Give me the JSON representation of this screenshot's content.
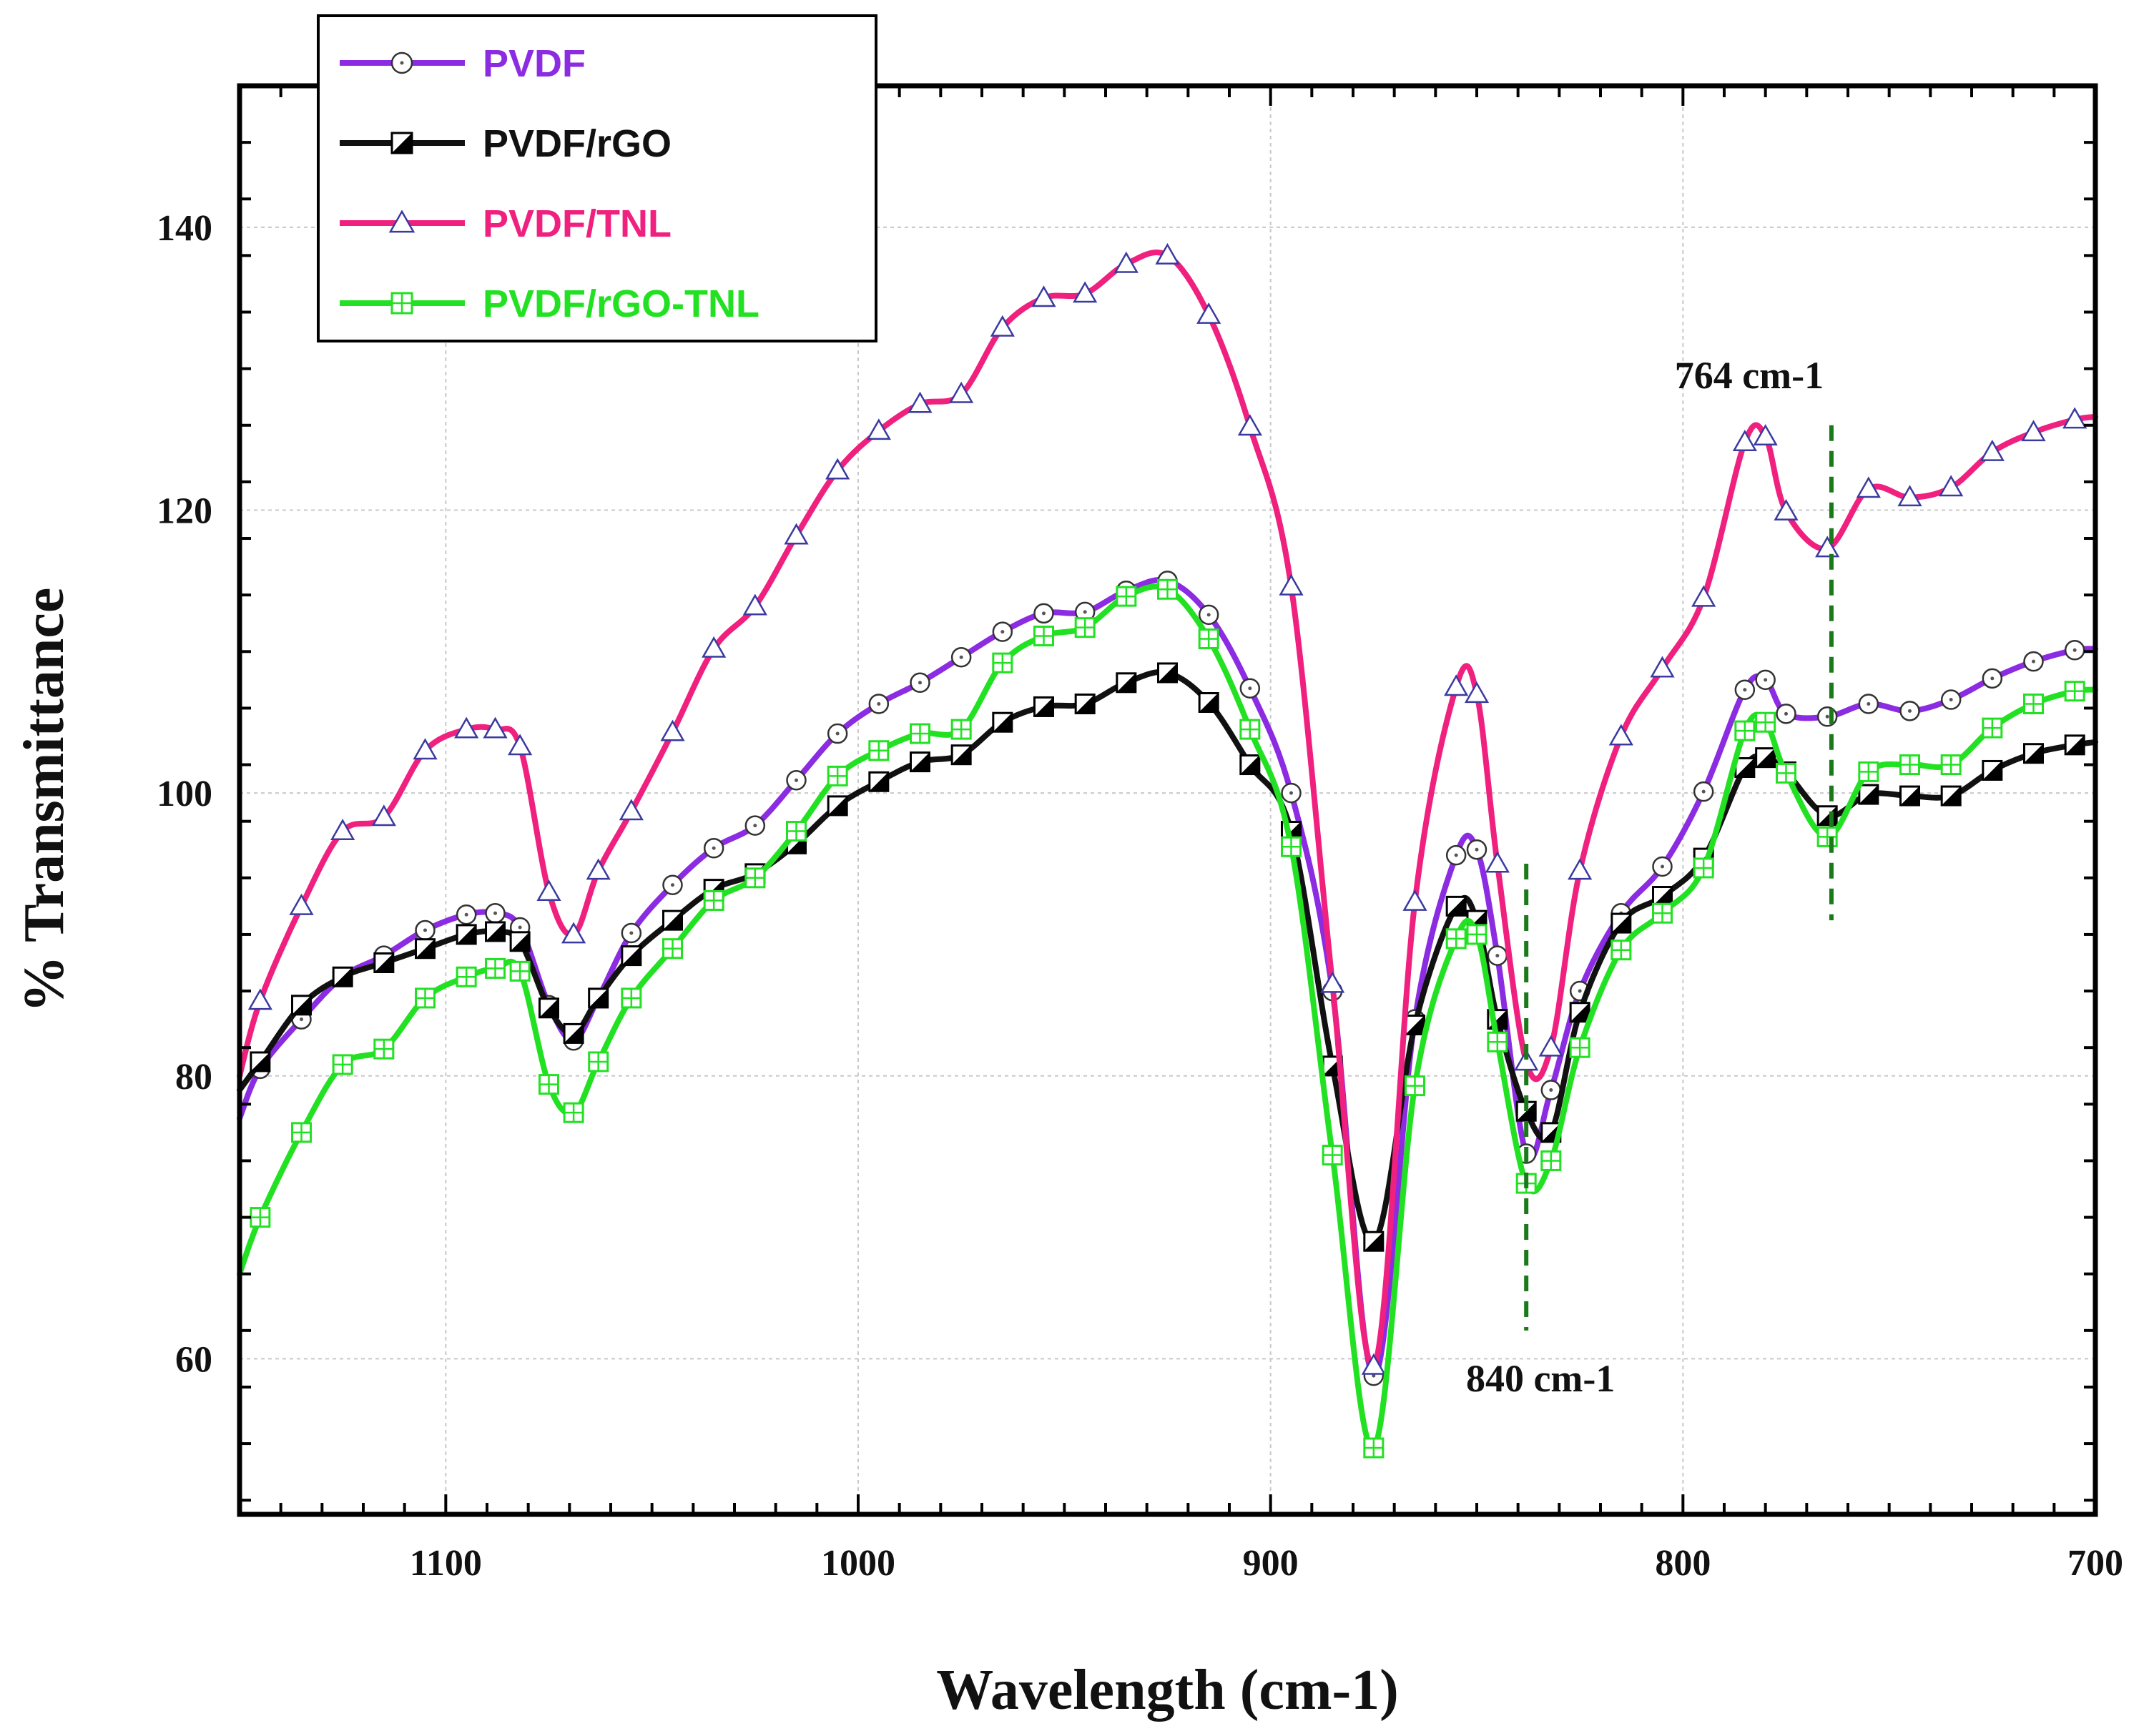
{
  "chart_data": {
    "type": "line",
    "xlabel": "Wavelength (cm-1)",
    "ylabel": "% Transmittance",
    "xlim": [
      1150,
      700
    ],
    "ylim": [
      49,
      150
    ],
    "x_reversed": true,
    "grid": true,
    "legend_position": "top-left",
    "xticks": [
      1100,
      1000,
      900,
      800,
      700
    ],
    "yticks": [
      60,
      80,
      100,
      120,
      140
    ],
    "series": [
      {
        "name": "PVDF",
        "color": "#8B2BE2",
        "marker": "circle",
        "points": [
          [
            1150,
            77
          ],
          [
            1145,
            80.5
          ],
          [
            1135,
            84
          ],
          [
            1125,
            87
          ],
          [
            1115,
            88.5
          ],
          [
            1105,
            90.3
          ],
          [
            1095,
            91.4
          ],
          [
            1088,
            91.5
          ],
          [
            1082,
            90.5
          ],
          [
            1075,
            85
          ],
          [
            1069,
            82.5
          ],
          [
            1063,
            85.5
          ],
          [
            1055,
            90.1
          ],
          [
            1045,
            93.5
          ],
          [
            1035,
            96.1
          ],
          [
            1025,
            97.7
          ],
          [
            1015,
            100.9
          ],
          [
            1005,
            104.2
          ],
          [
            995,
            106.3
          ],
          [
            985,
            107.8
          ],
          [
            975,
            109.6
          ],
          [
            965,
            111.4
          ],
          [
            955,
            112.7
          ],
          [
            945,
            112.8
          ],
          [
            935,
            114.3
          ],
          [
            925,
            115
          ],
          [
            915,
            112.6
          ],
          [
            905,
            107.4
          ],
          [
            895,
            100
          ],
          [
            885,
            86
          ],
          [
            875,
            58.8
          ],
          [
            865,
            84
          ],
          [
            855,
            95.6
          ],
          [
            850,
            96
          ],
          [
            845,
            88.5
          ],
          [
            838,
            74.5
          ],
          [
            832,
            79
          ],
          [
            825,
            86
          ],
          [
            815,
            91.5
          ],
          [
            805,
            94.8
          ],
          [
            795,
            100.1
          ],
          [
            785,
            107.3
          ],
          [
            780,
            108
          ],
          [
            775,
            105.6
          ],
          [
            765,
            105.4
          ],
          [
            755,
            106.3
          ],
          [
            745,
            105.8
          ],
          [
            735,
            106.6
          ],
          [
            725,
            108.1
          ],
          [
            715,
            109.3
          ],
          [
            705,
            110.1
          ],
          [
            700,
            110.2
          ]
        ]
      },
      {
        "name": "PVDF/rGO",
        "color": "#111111",
        "marker": "half-square",
        "points": [
          [
            1150,
            79
          ],
          [
            1145,
            81
          ],
          [
            1135,
            85
          ],
          [
            1125,
            87
          ],
          [
            1115,
            88
          ],
          [
            1105,
            89
          ],
          [
            1095,
            90
          ],
          [
            1088,
            90.2
          ],
          [
            1082,
            89.5
          ],
          [
            1075,
            84.8
          ],
          [
            1069,
            83
          ],
          [
            1063,
            85.5
          ],
          [
            1055,
            88.5
          ],
          [
            1045,
            91
          ],
          [
            1035,
            93.2
          ],
          [
            1025,
            94.3
          ],
          [
            1015,
            96.4
          ],
          [
            1005,
            99.1
          ],
          [
            995,
            100.8
          ],
          [
            985,
            102.2
          ],
          [
            975,
            102.7
          ],
          [
            965,
            105
          ],
          [
            955,
            106.1
          ],
          [
            945,
            106.3
          ],
          [
            935,
            107.8
          ],
          [
            925,
            108.5
          ],
          [
            915,
            106.4
          ],
          [
            905,
            102
          ],
          [
            895,
            97.3
          ],
          [
            885,
            80.7
          ],
          [
            875,
            68.3
          ],
          [
            865,
            83.6
          ],
          [
            855,
            92
          ],
          [
            850,
            91
          ],
          [
            845,
            84
          ],
          [
            838,
            77.5
          ],
          [
            832,
            76
          ],
          [
            825,
            84.5
          ],
          [
            815,
            90.8
          ],
          [
            805,
            92.7
          ],
          [
            795,
            95.4
          ],
          [
            785,
            101.8
          ],
          [
            780,
            102.5
          ],
          [
            775,
            101.5
          ],
          [
            765,
            98.4
          ],
          [
            755,
            99.9
          ],
          [
            745,
            99.8
          ],
          [
            735,
            99.8
          ],
          [
            725,
            101.6
          ],
          [
            715,
            102.8
          ],
          [
            705,
            103.4
          ],
          [
            700,
            103.6
          ]
        ]
      },
      {
        "name": "PVDF/TNL",
        "color": "#F0207E",
        "marker": "triangle",
        "points": [
          [
            1150,
            80
          ],
          [
            1145,
            85.3
          ],
          [
            1135,
            92
          ],
          [
            1125,
            97.3
          ],
          [
            1115,
            98.3
          ],
          [
            1105,
            103
          ],
          [
            1095,
            104.5
          ],
          [
            1088,
            104.5
          ],
          [
            1082,
            103.3
          ],
          [
            1075,
            93
          ],
          [
            1069,
            90
          ],
          [
            1063,
            94.5
          ],
          [
            1055,
            98.7
          ],
          [
            1045,
            104.3
          ],
          [
            1035,
            110.2
          ],
          [
            1025,
            113.2
          ],
          [
            1015,
            118.2
          ],
          [
            1005,
            122.8
          ],
          [
            995,
            125.6
          ],
          [
            985,
            127.5
          ],
          [
            975,
            128.2
          ],
          [
            965,
            132.9
          ],
          [
            955,
            135
          ],
          [
            945,
            135.3
          ],
          [
            935,
            137.4
          ],
          [
            925,
            138
          ],
          [
            915,
            133.8
          ],
          [
            905,
            125.9
          ],
          [
            895,
            114.6
          ],
          [
            885,
            86.5
          ],
          [
            875,
            59.5
          ],
          [
            865,
            92.3
          ],
          [
            855,
            107.5
          ],
          [
            850,
            107
          ],
          [
            845,
            95
          ],
          [
            838,
            81
          ],
          [
            832,
            82
          ],
          [
            825,
            94.5
          ],
          [
            815,
            104
          ],
          [
            805,
            108.8
          ],
          [
            795,
            113.8
          ],
          [
            785,
            124.8
          ],
          [
            780,
            125.2
          ],
          [
            775,
            119.9
          ],
          [
            765,
            117.3
          ],
          [
            755,
            121.5
          ],
          [
            745,
            120.9
          ],
          [
            735,
            121.6
          ],
          [
            725,
            124.1
          ],
          [
            715,
            125.5
          ],
          [
            705,
            126.4
          ],
          [
            700,
            126.6
          ]
        ]
      },
      {
        "name": "PVDF/rGO-TNL",
        "color": "#22E122",
        "marker": "crossed-square",
        "points": [
          [
            1150,
            66
          ],
          [
            1145,
            70
          ],
          [
            1135,
            76
          ],
          [
            1125,
            80.8
          ],
          [
            1115,
            81.9
          ],
          [
            1105,
            85.5
          ],
          [
            1095,
            87
          ],
          [
            1088,
            87.6
          ],
          [
            1082,
            87.4
          ],
          [
            1075,
            79.4
          ],
          [
            1069,
            77.4
          ],
          [
            1063,
            81
          ],
          [
            1055,
            85.5
          ],
          [
            1045,
            89
          ],
          [
            1035,
            92.4
          ],
          [
            1025,
            94
          ],
          [
            1015,
            97.3
          ],
          [
            1005,
            101.2
          ],
          [
            995,
            103
          ],
          [
            985,
            104.2
          ],
          [
            975,
            104.5
          ],
          [
            965,
            109.2
          ],
          [
            955,
            111.1
          ],
          [
            945,
            111.7
          ],
          [
            935,
            113.9
          ],
          [
            925,
            114.4
          ],
          [
            915,
            110.9
          ],
          [
            905,
            104.5
          ],
          [
            895,
            96.2
          ],
          [
            885,
            74.4
          ],
          [
            875,
            53.7
          ],
          [
            865,
            79.3
          ],
          [
            855,
            89.7
          ],
          [
            850,
            90
          ],
          [
            845,
            82.4
          ],
          [
            838,
            72.4
          ],
          [
            832,
            74
          ],
          [
            825,
            82
          ],
          [
            815,
            88.9
          ],
          [
            805,
            91.5
          ],
          [
            795,
            94.7
          ],
          [
            785,
            104.4
          ],
          [
            780,
            105
          ],
          [
            775,
            101.4
          ],
          [
            765,
            96.9
          ],
          [
            755,
            101.5
          ],
          [
            745,
            102
          ],
          [
            735,
            102
          ],
          [
            725,
            104.6
          ],
          [
            715,
            106.3
          ],
          [
            705,
            107.2
          ],
          [
            700,
            107.3
          ]
        ]
      }
    ],
    "annotations": [
      {
        "text": "764 cm-1",
        "x": 764,
        "line_from": 91,
        "line_to": 126
      },
      {
        "text": "840 cm-1",
        "x": 838,
        "line_from": 62,
        "line_to": 95
      }
    ]
  }
}
